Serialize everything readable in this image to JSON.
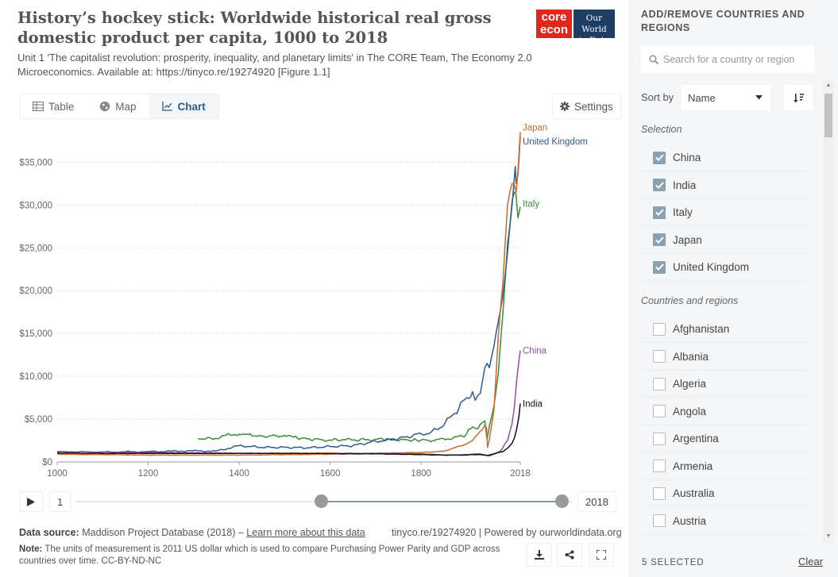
{
  "title": "History’s hockey stick: Worldwide historical real gross domestic product per capita, 1000 to 2018",
  "subtitle": "Unit 1 'The capitalist revolution: prosperity, inequality, and planetary limits' in The CORE Team, The Economy 2.0 Microeconomics. Available at: https://tinyco.re/19274920 [Figure 1.1]",
  "logos": {
    "core_line1": "core",
    "core_line2": "econ",
    "owid_line1": "Our World",
    "owid_line2": "in Data"
  },
  "tabs": [
    {
      "label": "Table",
      "icon": "table-icon"
    },
    {
      "label": "Map",
      "icon": "globe-icon"
    },
    {
      "label": "Chart",
      "icon": "line-chart-icon",
      "active": true
    }
  ],
  "settings_label": "Settings",
  "timeline": {
    "start_box": "1",
    "end_box": "2018",
    "start_handle_year": 1000,
    "end_handle_year": 2018
  },
  "footer": {
    "source_prefix": "Data source:",
    "source_text": "Maddison Project Database (2018) –",
    "source_link": "Learn more about this data",
    "url_text": "tinyco.re/19274920 | Powered by ourworldindata.org",
    "note_prefix": "Note:",
    "note_text": "The units of measurement is 2011 US dollar which is used to compare Purchasing Power Parity and GDP across countries over time. CC-BY-ND-NC"
  },
  "sidebar": {
    "heading": "ADD/REMOVE COUNTRIES AND REGIONS",
    "search_placeholder": "Search for a country or region",
    "sort_label": "Sort by",
    "sort_value": "Name",
    "selection_label": "Selection",
    "selected": [
      "China",
      "India",
      "Italy",
      "Japan",
      "United Kingdom"
    ],
    "regions_label": "Countries and regions",
    "regions": [
      "Afghanistan",
      "Albania",
      "Algeria",
      "Angola",
      "Argentina",
      "Armenia",
      "Australia",
      "Austria"
    ],
    "selected_count": "5 SELECTED",
    "clear_label": "Clear"
  },
  "colors": {
    "accent": "#2d5d8b",
    "checkbox_on": "#8aa1b1",
    "core_red": "#e1261c",
    "owid_blue": "#1d3d63"
  },
  "chart_data": {
    "type": "line",
    "xlim": [
      1000,
      2018
    ],
    "ylim": [
      0,
      38000
    ],
    "x_ticks": [
      1000,
      1200,
      1400,
      1600,
      1800,
      2018
    ],
    "y_ticks": [
      0,
      5000,
      10000,
      15000,
      20000,
      25000,
      30000,
      35000
    ],
    "y_tick_labels": [
      "$0",
      "$5,000",
      "$10,000",
      "$15,000",
      "$20,000",
      "$25,000",
      "$30,000",
      "$35,000"
    ],
    "grid": "horizontal dotted",
    "series": [
      {
        "name": "Italy",
        "color": "#3a8c3a",
        "points": [
          [
            1310,
            2750
          ],
          [
            1340,
            2700
          ],
          [
            1360,
            2950
          ],
          [
            1380,
            3150
          ],
          [
            1400,
            3250
          ],
          [
            1420,
            3200
          ],
          [
            1450,
            3000
          ],
          [
            1480,
            3050
          ],
          [
            1500,
            3100
          ],
          [
            1520,
            2900
          ],
          [
            1550,
            2700
          ],
          [
            1580,
            2600
          ],
          [
            1600,
            2550
          ],
          [
            1630,
            2600
          ],
          [
            1650,
            2550
          ],
          [
            1680,
            2600
          ],
          [
            1700,
            2650
          ],
          [
            1730,
            2650
          ],
          [
            1760,
            2600
          ],
          [
            1790,
            2550
          ],
          [
            1800,
            2550
          ],
          [
            1830,
            2500
          ],
          [
            1850,
            2700
          ],
          [
            1870,
            2800
          ],
          [
            1890,
            3000
          ],
          [
            1900,
            3300
          ],
          [
            1913,
            4100
          ],
          [
            1920,
            3900
          ],
          [
            1930,
            4400
          ],
          [
            1940,
            4800
          ],
          [
            1945,
            2600
          ],
          [
            1950,
            4200
          ],
          [
            1960,
            6500
          ],
          [
            1970,
            10500
          ],
          [
            1980,
            17500
          ],
          [
            1990,
            25500
          ],
          [
            2000,
            30500
          ],
          [
            2005,
            31500
          ],
          [
            2008,
            31500
          ],
          [
            2013,
            28500
          ],
          [
            2018,
            29800
          ]
        ]
      },
      {
        "name": "United Kingdom",
        "color": "#2f5a8c",
        "points": [
          [
            1000,
            1150
          ],
          [
            1100,
            1150
          ],
          [
            1200,
            1200
          ],
          [
            1252,
            1250
          ],
          [
            1300,
            1300
          ],
          [
            1348,
            1250
          ],
          [
            1400,
            1900
          ],
          [
            1450,
            1700
          ],
          [
            1500,
            1700
          ],
          [
            1550,
            1650
          ],
          [
            1600,
            1800
          ],
          [
            1650,
            1900
          ],
          [
            1700,
            2400
          ],
          [
            1750,
            2700
          ],
          [
            1800,
            3300
          ],
          [
            1820,
            3400
          ],
          [
            1850,
            4300
          ],
          [
            1870,
            5500
          ],
          [
            1900,
            7500
          ],
          [
            1913,
            8200
          ],
          [
            1919,
            7200
          ],
          [
            1930,
            8000
          ],
          [
            1940,
            11000
          ],
          [
            1945,
            11500
          ],
          [
            1950,
            11000
          ],
          [
            1960,
            13500
          ],
          [
            1970,
            16500
          ],
          [
            1980,
            19500
          ],
          [
            1990,
            24500
          ],
          [
            2000,
            30000
          ],
          [
            2007,
            34500
          ],
          [
            2009,
            32500
          ],
          [
            2013,
            33500
          ],
          [
            2018,
            38000
          ]
        ]
      },
      {
        "name": "Japan",
        "color": "#c96a2b",
        "points": [
          [
            1000,
            900
          ],
          [
            1100,
            850
          ],
          [
            1200,
            800
          ],
          [
            1300,
            800
          ],
          [
            1400,
            800
          ],
          [
            1500,
            850
          ],
          [
            1600,
            900
          ],
          [
            1650,
            950
          ],
          [
            1700,
            1000
          ],
          [
            1750,
            1050
          ],
          [
            1800,
            1100
          ],
          [
            1850,
            1250
          ],
          [
            1870,
            1600
          ],
          [
            1900,
            2100
          ],
          [
            1913,
            2500
          ],
          [
            1920,
            3000
          ],
          [
            1935,
            3800
          ],
          [
            1940,
            4300
          ],
          [
            1944,
            4000
          ],
          [
            1946,
            1700
          ],
          [
            1950,
            2600
          ],
          [
            1960,
            6000
          ],
          [
            1970,
            15000
          ],
          [
            1980,
            21000
          ],
          [
            1990,
            30000
          ],
          [
            1995,
            31500
          ],
          [
            2000,
            32500
          ],
          [
            2009,
            31500
          ],
          [
            2013,
            34000
          ],
          [
            2018,
            38500
          ]
        ]
      },
      {
        "name": "China",
        "color": "#8e4fa8",
        "points": [
          [
            1000,
            1200
          ],
          [
            1100,
            1150
          ],
          [
            1200,
            1100
          ],
          [
            1300,
            1050
          ],
          [
            1400,
            1000
          ],
          [
            1500,
            1000
          ],
          [
            1600,
            1000
          ],
          [
            1700,
            1000
          ],
          [
            1750,
            1000
          ],
          [
            1800,
            950
          ],
          [
            1820,
            900
          ],
          [
            1850,
            800
          ],
          [
            1870,
            800
          ],
          [
            1900,
            850
          ],
          [
            1913,
            900
          ],
          [
            1930,
            950
          ],
          [
            1950,
            700
          ],
          [
            1960,
            900
          ],
          [
            1970,
            1100
          ],
          [
            1978,
            1500
          ],
          [
            1985,
            2200
          ],
          [
            1990,
            2500
          ],
          [
            1995,
            3500
          ],
          [
            2000,
            4500
          ],
          [
            2005,
            6400
          ],
          [
            2010,
            9500
          ],
          [
            2015,
            11800
          ],
          [
            2018,
            13000
          ]
        ]
      },
      {
        "name": "India",
        "color": "#111111",
        "points": [
          [
            1000,
            1050
          ],
          [
            1100,
            1000
          ],
          [
            1200,
            1000
          ],
          [
            1300,
            1000
          ],
          [
            1400,
            1000
          ],
          [
            1500,
            1000
          ],
          [
            1600,
            1000
          ],
          [
            1650,
            950
          ],
          [
            1700,
            950
          ],
          [
            1750,
            900
          ],
          [
            1800,
            850
          ],
          [
            1850,
            800
          ],
          [
            1900,
            800
          ],
          [
            1913,
            850
          ],
          [
            1930,
            850
          ],
          [
            1947,
            750
          ],
          [
            1950,
            800
          ],
          [
            1960,
            950
          ],
          [
            1970,
            1100
          ],
          [
            1980,
            1200
          ],
          [
            1990,
            1600
          ],
          [
            2000,
            2200
          ],
          [
            2005,
            2800
          ],
          [
            2010,
            3800
          ],
          [
            2015,
            5300
          ],
          [
            2018,
            6800
          ]
        ]
      }
    ]
  }
}
